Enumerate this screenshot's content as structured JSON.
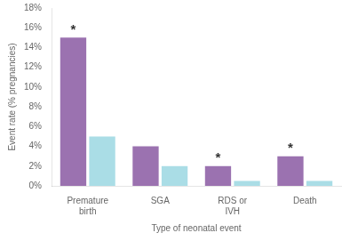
{
  "chart_data": {
    "type": "bar",
    "categories": [
      "Premature\nbirth",
      "SGA",
      "RDS or\nIVH",
      "Death"
    ],
    "series": [
      {
        "color": "#9B72B0",
        "values": [
          15.0,
          4.0,
          2.0,
          3.0
        ]
      },
      {
        "color": "#AADDE6",
        "values": [
          5.0,
          2.0,
          0.5,
          0.5
        ]
      }
    ],
    "xlabel": "Type of neonatal event",
    "ylabel": "Event rate (% pregnancies)",
    "ylim": [
      0,
      18
    ],
    "yticks": [
      {
        "value": 0,
        "label": "0%"
      },
      {
        "value": 2,
        "label": "2%"
      },
      {
        "value": 4,
        "label": "4%"
      },
      {
        "value": 6,
        "label": "6%"
      },
      {
        "value": 8,
        "label": "8%"
      },
      {
        "value": 10,
        "label": "10%"
      },
      {
        "value": 12,
        "label": "12%"
      },
      {
        "value": 14,
        "label": "14%"
      },
      {
        "value": 16,
        "label": "16%"
      },
      {
        "value": 18,
        "label": "18%"
      }
    ],
    "grid": false,
    "annotations": [
      {
        "text": "*",
        "x": "Premature\nbirth",
        "y": 15.0
      },
      {
        "text": "*",
        "x": "RDS or\nIVH",
        "y": 2.0
      },
      {
        "text": "*",
        "x": "Death",
        "y": 3.0
      }
    ]
  }
}
